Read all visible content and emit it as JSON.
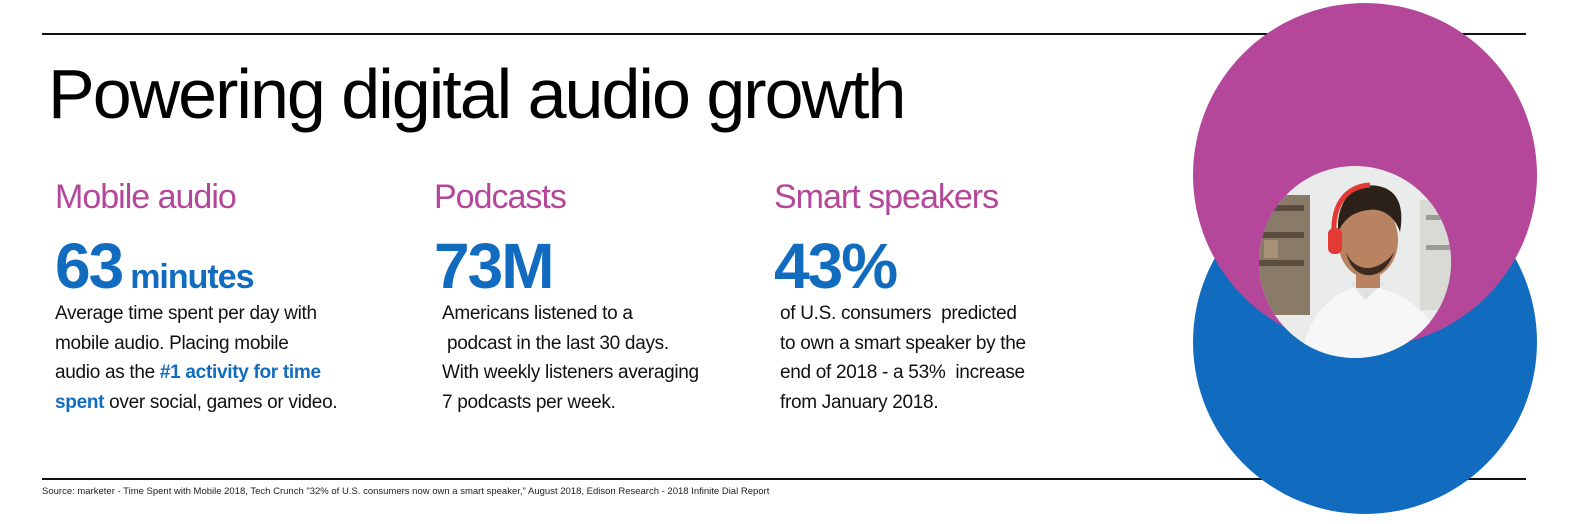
{
  "title": "Powering digital audio growth",
  "stats": [
    {
      "category": "Mobile audio",
      "value": "63",
      "unit": "minutes",
      "lines": [
        "Average time spent per day with",
        "mobile audio. Placing mobile",
        "audio as the ",
        "#1 activity for time",
        "spent",
        " over social, games or video."
      ]
    },
    {
      "category": "Podcasts",
      "value": "73M",
      "lines": [
        "Americans listened to a",
        " podcast in the last 30 days.",
        "With weekly listeners averaging",
        "7 podcasts per week."
      ]
    },
    {
      "category": "Smart speakers",
      "value": "43%",
      "lines": [
        "of U.S. consumers  predicted",
        "to own a smart speaker by the",
        "end of 2018 - a 53%  increase",
        "from January 2018."
      ]
    }
  ],
  "source": "Source: marketer - Time Spent with Mobile 2018, Tech Crunch  \"32% of U.S. consumers now own a smart speaker,\" August 2018,  Edison Research - 2018 Infinite Dial  Report",
  "colors": {
    "magenta": "#b5479b",
    "blue": "#116cc0",
    "text": "#111111"
  }
}
